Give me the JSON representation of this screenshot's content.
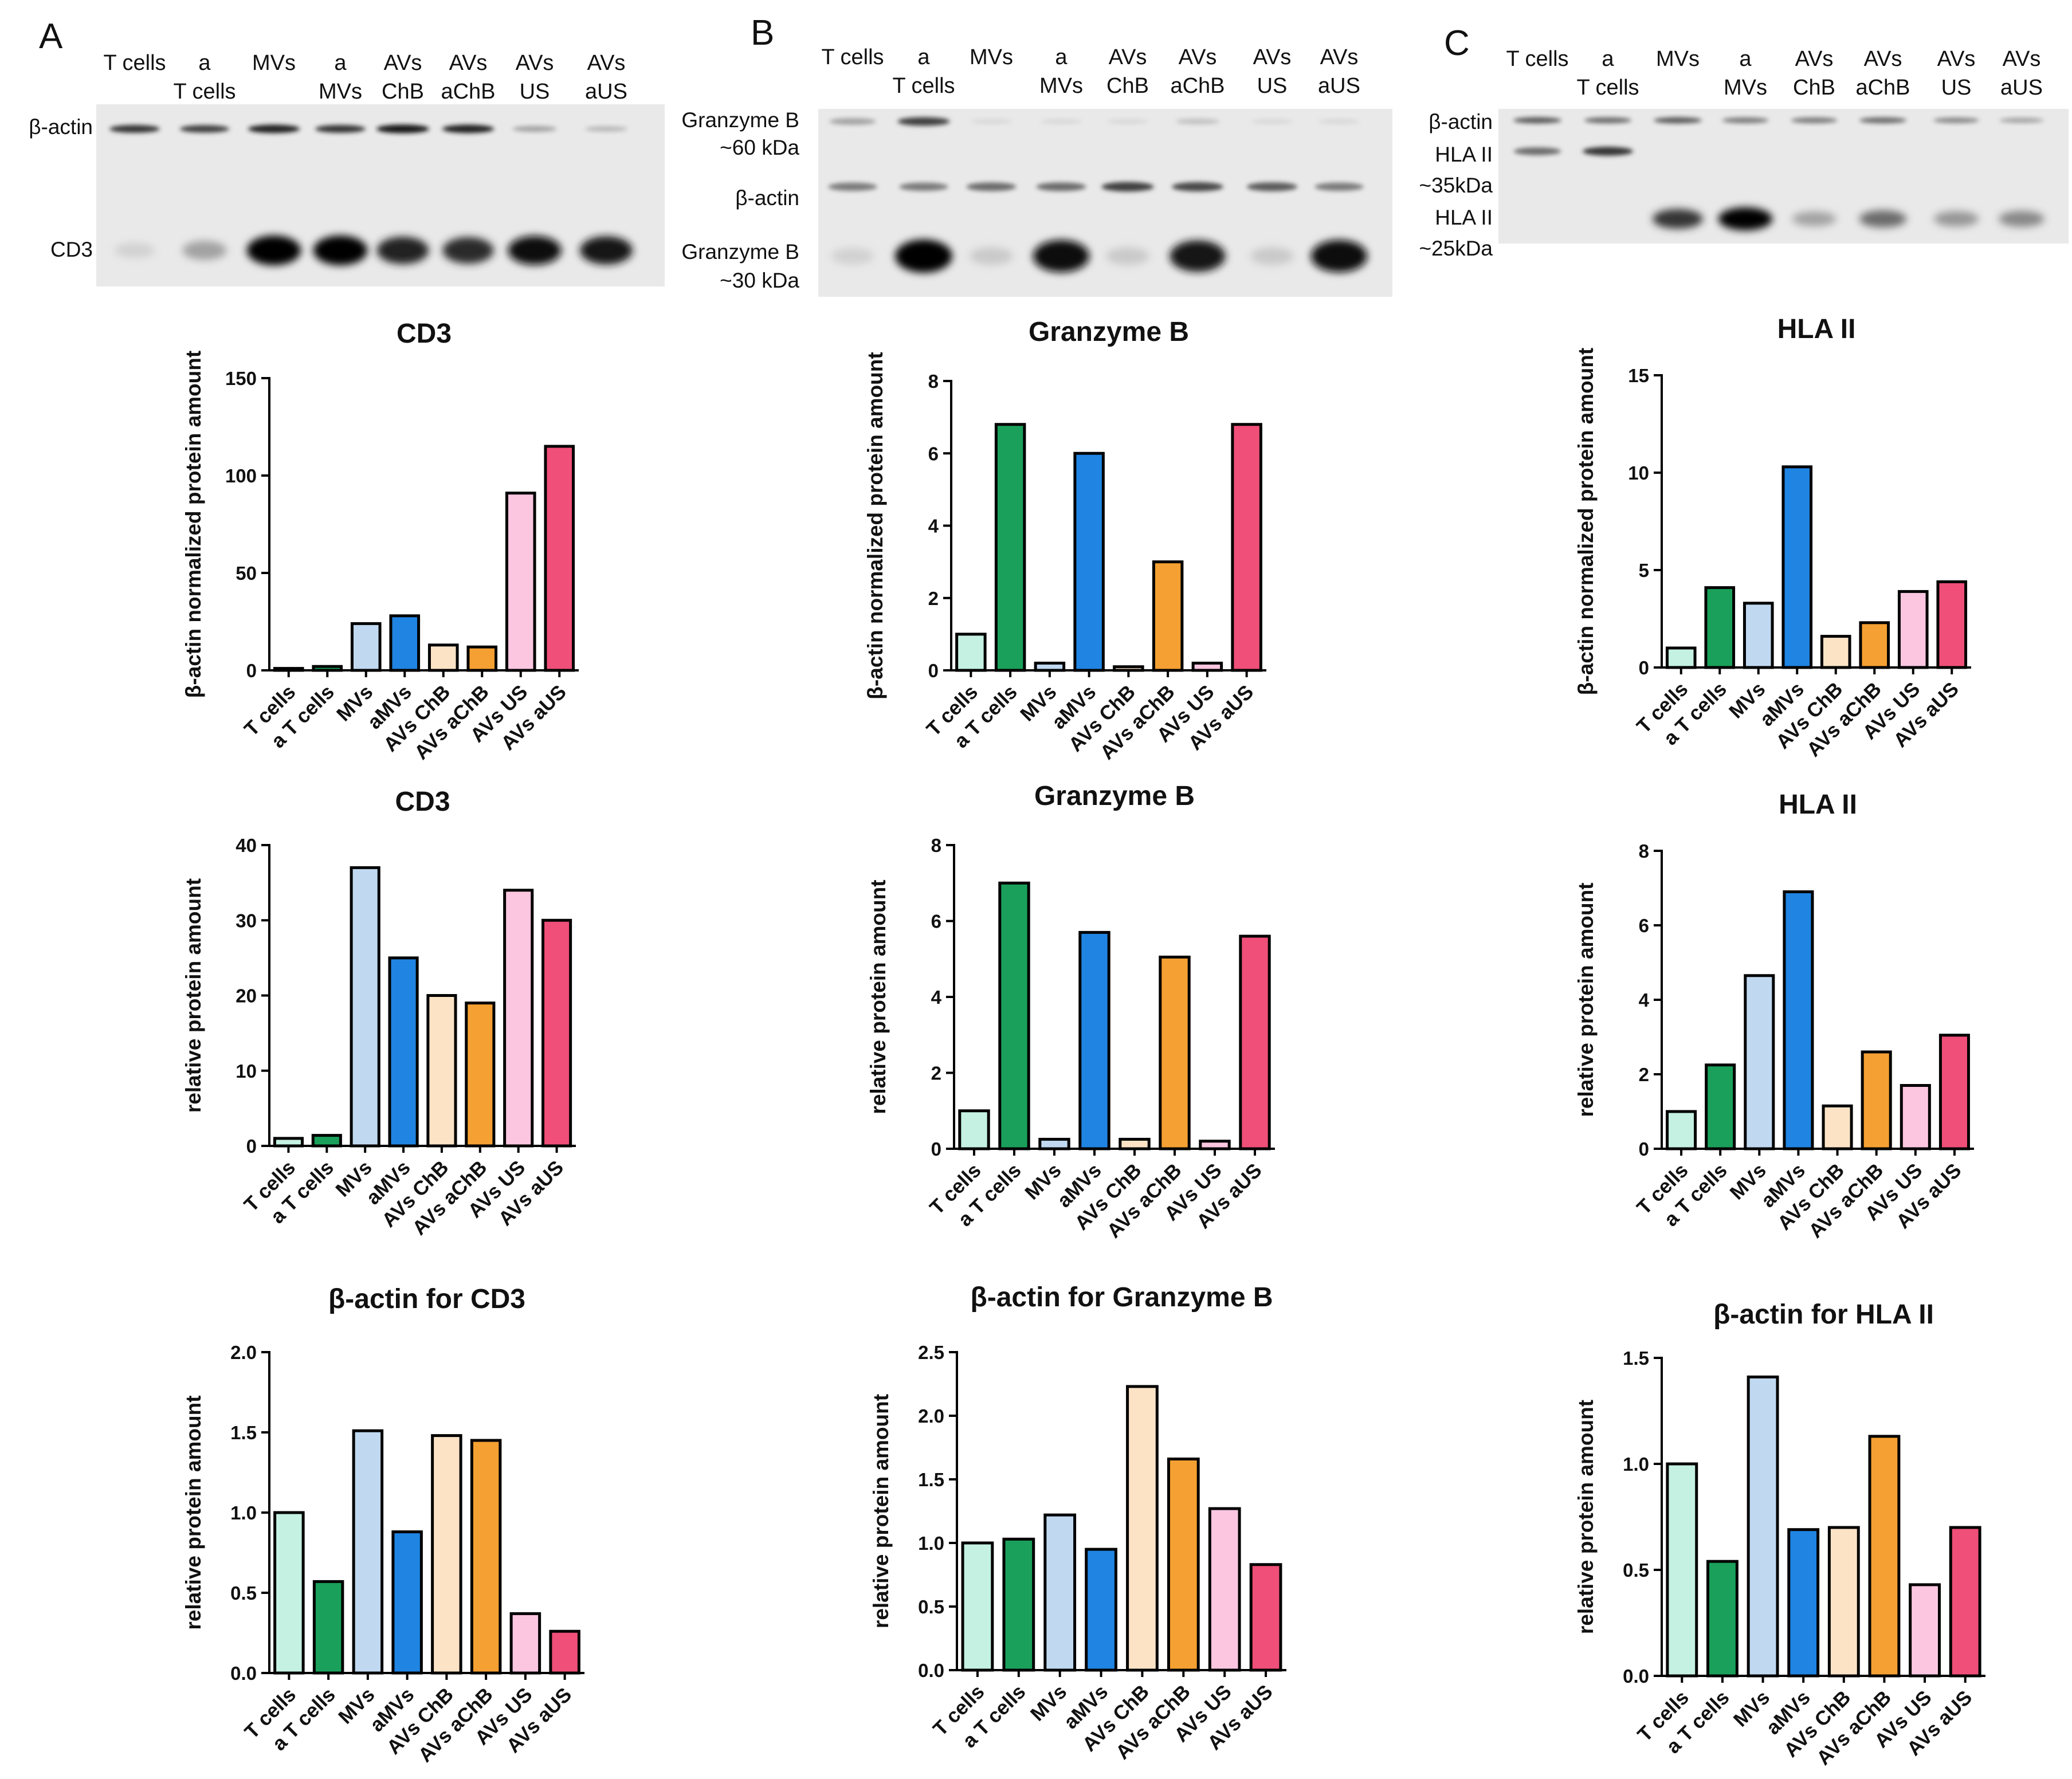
{
  "colors": [
    "#c4f1e1",
    "#1aa05a",
    "#c0d9f1",
    "#1f84e2",
    "#fde3c6",
    "#f5a032",
    "#fcc6e0",
    "#ef4f78"
  ],
  "categories": [
    "T cells",
    "a T cells",
    "MVs",
    "aMVs",
    "AVs ChB",
    "AVs aChB",
    "AVs US",
    "AVs aUS"
  ],
  "panels": [
    {
      "letter": "A",
      "blot": {
        "lanes": [
          [
            "T cells"
          ],
          [
            "a",
            "T cells"
          ],
          [
            "MVs"
          ],
          [
            "a",
            "MVs"
          ],
          [
            "AVs",
            "ChB"
          ],
          [
            "AVs",
            "aChB"
          ],
          [
            "AVs",
            "US"
          ],
          [
            "AVs",
            "aUS"
          ]
        ],
        "labels": [
          [
            "β-actin"
          ],
          [
            "CD3"
          ]
        ],
        "bands": [
          {
            "row": "beta-actin",
            "intensity": [
              0.75,
              0.7,
              0.85,
              0.75,
              0.9,
              0.85,
              0.35,
              0.25
            ]
          },
          {
            "row": "CD3",
            "intensity": [
              0.1,
              0.35,
              1.0,
              1.0,
              0.85,
              0.8,
              0.95,
              0.9
            ]
          }
        ]
      }
    },
    {
      "letter": "B",
      "blot": {
        "lanes": [
          [
            "T cells"
          ],
          [
            "a",
            "T cells"
          ],
          [
            "MVs"
          ],
          [
            "a",
            "MVs"
          ],
          [
            "AVs",
            "ChB"
          ],
          [
            "AVs",
            "aChB"
          ],
          [
            "AVs",
            "US"
          ],
          [
            "AVs",
            "aUS"
          ]
        ],
        "labels": [
          [
            "Granzyme B",
            "~60 kDa"
          ],
          [
            "β-actin"
          ],
          [
            "Granzyme B",
            "~30 kDa"
          ]
        ],
        "bands": [
          {
            "row": "granzyme-b-60",
            "intensity": [
              0.35,
              0.7,
              0.05,
              0.05,
              0.05,
              0.2,
              0.05,
              0.05
            ]
          },
          {
            "row": "beta-actin",
            "intensity": [
              0.5,
              0.5,
              0.55,
              0.55,
              0.7,
              0.65,
              0.6,
              0.5
            ]
          },
          {
            "row": "granzyme-b-30",
            "intensity": [
              0.1,
              1.0,
              0.15,
              0.95,
              0.15,
              0.9,
              0.15,
              0.95
            ]
          }
        ]
      }
    },
    {
      "letter": "C",
      "blot": {
        "lanes": [
          [
            "T cells"
          ],
          [
            "a",
            "T cells"
          ],
          [
            "MVs"
          ],
          [
            "a",
            "MVs"
          ],
          [
            "AVs",
            "ChB"
          ],
          [
            "AVs",
            "aChB"
          ],
          [
            "AVs",
            "US"
          ],
          [
            "AVs",
            "aUS"
          ]
        ],
        "labels": [
          [
            "β-actin"
          ],
          [
            "HLA II"
          ],
          [
            "~35kDa"
          ],
          [
            "HLA II"
          ],
          [
            "~25kDa"
          ]
        ],
        "bands": [
          {
            "row": "beta-actin",
            "intensity": [
              0.6,
              0.55,
              0.6,
              0.5,
              0.5,
              0.55,
              0.45,
              0.35
            ]
          },
          {
            "row": "hla-ii-35",
            "intensity": [
              0.55,
              0.75,
              0.0,
              0.0,
              0.0,
              0.0,
              0.0,
              0.0
            ]
          },
          {
            "row": "hla-ii-25",
            "intensity": [
              0.0,
              0.0,
              0.75,
              1.0,
              0.35,
              0.55,
              0.4,
              0.45
            ]
          }
        ]
      }
    }
  ],
  "chart_data": [
    {
      "id": "a1",
      "type": "bar",
      "title": "CD3",
      "ylabel": "β-actin normalized protein amount",
      "xlabel": "",
      "categories": [
        "T cells",
        "a T cells",
        "MVs",
        "aMVs",
        "AVs ChB",
        "AVs aChB",
        "AVs US",
        "AVs aUS"
      ],
      "values": [
        1,
        2,
        24,
        28,
        13,
        12,
        91,
        115
      ],
      "ylim": [
        0,
        150
      ],
      "yticks": [
        "0",
        "50",
        "100",
        "150"
      ],
      "grid": false
    },
    {
      "id": "a2",
      "type": "bar",
      "title": "CD3",
      "ylabel": "relative protein amount",
      "xlabel": "",
      "categories": [
        "T cells",
        "a T cells",
        "MVs",
        "aMVs",
        "AVs ChB",
        "AVs aChB",
        "AVs US",
        "AVs aUS"
      ],
      "values": [
        1,
        1.4,
        37,
        25,
        20,
        19,
        34,
        30
      ],
      "ylim": [
        0,
        40
      ],
      "yticks": [
        "0",
        "10",
        "20",
        "30",
        "40"
      ],
      "grid": false
    },
    {
      "id": "a3",
      "type": "bar",
      "title": "β-actin for CD3",
      "ylabel": "relative protein amount",
      "xlabel": "",
      "categories": [
        "T cells",
        "a T cells",
        "MVs",
        "aMVs",
        "AVs ChB",
        "AVs aChB",
        "AVs US",
        "AVs aUS"
      ],
      "values": [
        1.0,
        0.57,
        1.51,
        0.88,
        1.48,
        1.45,
        0.37,
        0.26
      ],
      "ylim": [
        0,
        2.0
      ],
      "yticks": [
        "0.0",
        "0.5",
        "1.0",
        "1.5",
        "2.0"
      ],
      "grid": false
    },
    {
      "id": "b1",
      "type": "bar",
      "title": "Granzyme B",
      "ylabel": "β-actin normalized protein amount",
      "xlabel": "",
      "categories": [
        "T cells",
        "a T cells",
        "MVs",
        "aMVs",
        "AVs ChB",
        "AVs aChB",
        "AVs US",
        "AVs aUS"
      ],
      "values": [
        1.0,
        6.8,
        0.2,
        6.0,
        0.1,
        3.0,
        0.2,
        6.8
      ],
      "ylim": [
        0,
        8
      ],
      "yticks": [
        "0",
        "2",
        "4",
        "6",
        "8"
      ],
      "grid": false
    },
    {
      "id": "b2",
      "type": "bar",
      "title": "Granzyme B",
      "ylabel": "relative protein amount",
      "xlabel": "",
      "categories": [
        "T cells",
        "a T cells",
        "MVs",
        "aMVs",
        "AVs ChB",
        "AVs aChB",
        "AVs US",
        "AVs aUS"
      ],
      "values": [
        1.0,
        7.0,
        0.25,
        5.7,
        0.25,
        5.05,
        0.2,
        5.6
      ],
      "ylim": [
        0,
        8
      ],
      "yticks": [
        "0",
        "2",
        "4",
        "6",
        "8"
      ],
      "grid": false
    },
    {
      "id": "b3",
      "type": "bar",
      "title": "β-actin for Granzyme B",
      "ylabel": "relative protein amount",
      "xlabel": "",
      "categories": [
        "T cells",
        "a T cells",
        "MVs",
        "aMVs",
        "AVs ChB",
        "AVs aChB",
        "AVs US",
        "AVs aUS"
      ],
      "values": [
        1.0,
        1.03,
        1.22,
        0.95,
        2.23,
        1.66,
        1.27,
        0.83
      ],
      "ylim": [
        0,
        2.5
      ],
      "yticks": [
        "0.0",
        "0.5",
        "1.0",
        "1.5",
        "2.0",
        "2.5"
      ],
      "grid": false
    },
    {
      "id": "c1",
      "type": "bar",
      "title": "HLA II",
      "ylabel": "β-actin normalized protein amount",
      "xlabel": "",
      "categories": [
        "T cells",
        "a T cells",
        "MVs",
        "aMVs",
        "AVs ChB",
        "AVs aChB",
        "AVs US",
        "AVs aUS"
      ],
      "values": [
        1.0,
        4.1,
        3.3,
        10.3,
        1.6,
        2.3,
        3.9,
        4.4
      ],
      "ylim": [
        0,
        15
      ],
      "yticks": [
        "0",
        "5",
        "10",
        "15"
      ],
      "grid": false
    },
    {
      "id": "c2",
      "type": "bar",
      "title": "HLA II",
      "ylabel": "relative protein amount",
      "xlabel": "",
      "categories": [
        "T cells",
        "a T cells",
        "MVs",
        "aMVs",
        "AVs ChB",
        "AVs aChB",
        "AVs US",
        "AVs aUS"
      ],
      "values": [
        1.0,
        2.25,
        4.65,
        6.9,
        1.15,
        2.6,
        1.7,
        3.05
      ],
      "ylim": [
        0,
        8
      ],
      "yticks": [
        "0",
        "2",
        "4",
        "6",
        "8"
      ],
      "grid": false
    },
    {
      "id": "c3",
      "type": "bar",
      "title": "β-actin for HLA II",
      "ylabel": "relative protein amount",
      "xlabel": "",
      "categories": [
        "T cells",
        "a T cells",
        "MVs",
        "aMVs",
        "AVs ChB",
        "AVs aChB",
        "AVs US",
        "AVs aUS"
      ],
      "values": [
        1.0,
        0.54,
        1.41,
        0.69,
        0.7,
        1.13,
        0.43,
        0.7
      ],
      "ylim": [
        0,
        1.5
      ],
      "yticks": [
        "0.0",
        "0.5",
        "1.0",
        "1.5"
      ],
      "grid": false
    }
  ]
}
